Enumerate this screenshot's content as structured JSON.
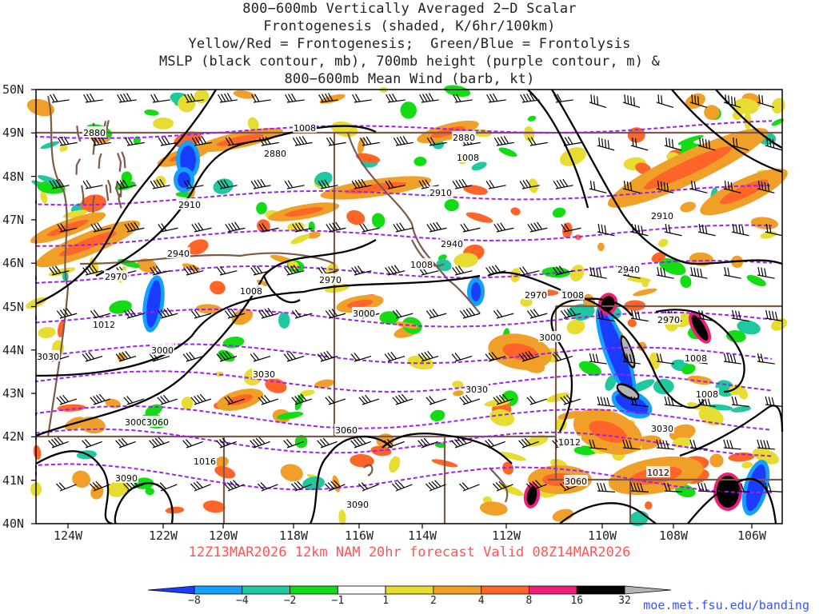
{
  "title_lines": [
    "800−600mb Vertically Averaged 2−D Scalar",
    "Frontogenesis (shaded, K/6hr/100km)",
    "Yellow/Red = Frontogenesis;  Green/Blue = Frontolysis",
    "MSLP (black contour, mb), 700mb height (purple contour, m) &",
    "800−600mb Mean Wind (barb, kt)"
  ],
  "lat_labels": [
    "50N",
    "49N",
    "48N",
    "47N",
    "46N",
    "45N",
    "44N",
    "43N",
    "42N",
    "41N",
    "40N"
  ],
  "lon_labels": [
    "124W",
    "122W",
    "120W",
    "118W",
    "116W",
    "114W",
    "112W",
    "110W",
    "108W",
    "106W"
  ],
  "valid_text": "12Z13MAR2026 12km NAM 20hr forecast Valid 08Z14MAR2026",
  "credit": "moe.met.fsu.edu/banding",
  "colorbar": {
    "labels": [
      "−8",
      "−4",
      "−2",
      "−1",
      "1",
      "2",
      "4",
      "8",
      "16",
      "32"
    ],
    "colors": [
      "#1a3cff",
      "#14a0ff",
      "#20c8a0",
      "#14dc14",
      "#ffffff",
      "#e6dc32",
      "#f0a028",
      "#ff6428",
      "#f01e78",
      "#000000",
      "#b4b4b4"
    ]
  },
  "height_labels": [
    "2880",
    "2880",
    "2880",
    "2910",
    "2910",
    "2910",
    "2940",
    "2940",
    "2940",
    "2970",
    "2970",
    "2970",
    "2970",
    "3000",
    "3000",
    "3000",
    "3000",
    "3030",
    "3030",
    "3030",
    "3030",
    "3060",
    "3060",
    "3060",
    "3090",
    "3090"
  ],
  "pressure_labels": [
    "1008",
    "1008",
    "1008",
    "1008",
    "1008",
    "1008",
    "1008",
    "1012",
    "1012",
    "1012",
    "1016"
  ],
  "colors": {
    "height_contour": "#a020f0",
    "pressure_contour": "#000000",
    "state_border": "#7a5a4a",
    "title": "#222222",
    "valid": "#ff5555",
    "credit": "#3355ff"
  }
}
